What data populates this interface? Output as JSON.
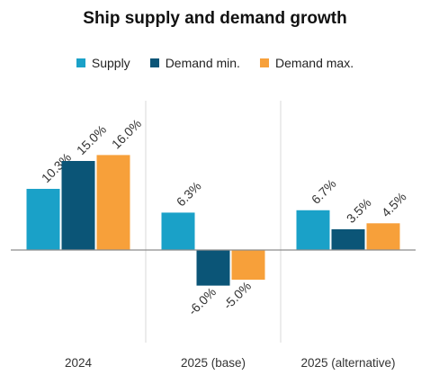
{
  "chart_data": {
    "type": "bar",
    "title": "Ship supply and demand growth",
    "xlabel": "",
    "ylabel": "",
    "categories": [
      "2024",
      "2025 (base)",
      "2025 (alternative)"
    ],
    "series": [
      {
        "name": "Supply",
        "color": "#1aa1c8",
        "values": [
          10.3,
          6.3,
          6.7
        ],
        "labels": [
          "10.3%",
          "6.3%",
          "6.7%"
        ]
      },
      {
        "name": "Demand min.",
        "color": "#0b5577",
        "values": [
          15.0,
          -6.0,
          3.5
        ],
        "labels": [
          "15.0%",
          "-6.0%",
          "3.5%"
        ]
      },
      {
        "name": "Demand max.",
        "color": "#f7a03a",
        "values": [
          16.0,
          -5.0,
          4.5
        ],
        "labels": [
          "16.0%",
          "-5.0%",
          "4.5%"
        ]
      }
    ],
    "ylim": [
      -15,
      30
    ],
    "grid": false,
    "legend_position": "top"
  }
}
